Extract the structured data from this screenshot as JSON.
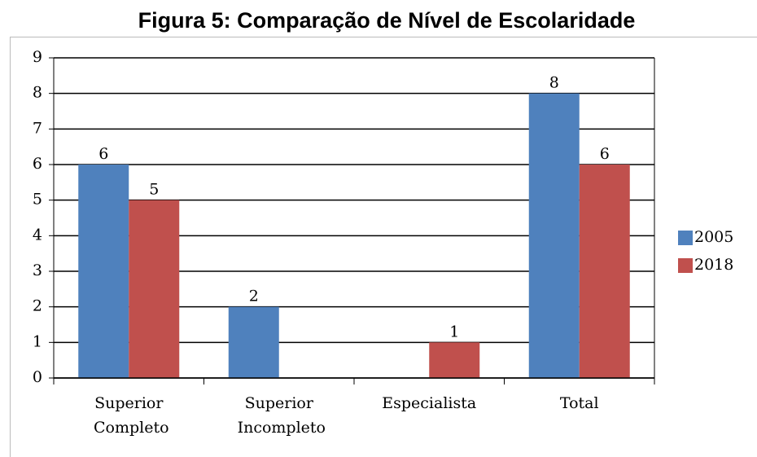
{
  "chart_data": {
    "type": "bar",
    "title": "Figura 5: Comparação de Nível de Escolaridade",
    "categories": [
      "Superior Completo",
      "Superior Incompleto",
      "Especialista",
      "Total"
    ],
    "series": [
      {
        "name": "2005",
        "color": "#4f81bd",
        "values": [
          6,
          2,
          null,
          8
        ]
      },
      {
        "name": "2018",
        "color": "#c0504d",
        "values": [
          5,
          null,
          1,
          6
        ]
      }
    ],
    "ylim": [
      0,
      9
    ],
    "yticks": [
      0,
      1,
      2,
      3,
      4,
      5,
      6,
      7,
      8,
      9
    ],
    "grid": true,
    "legend": "right"
  }
}
